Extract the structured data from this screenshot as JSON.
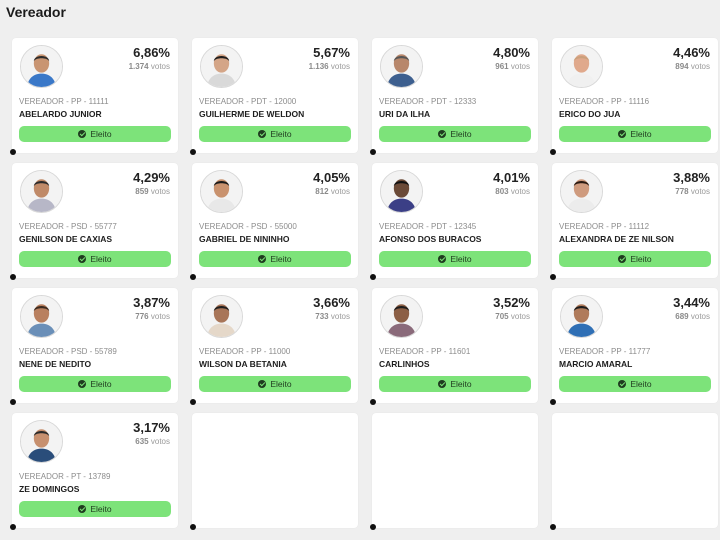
{
  "page": {
    "title": "Vereador"
  },
  "colors": {
    "elected_badge": "#7de37a",
    "page_bg": "#efefef",
    "card_bg": "#ffffff"
  },
  "candidates": [
    {
      "pct": "6,86%",
      "votes_num": "1.374",
      "votes_label": "votos",
      "meta": "VEREADOR - PP - 11111",
      "name": "ABELARDO JUNIOR",
      "status": "Eleito"
    },
    {
      "pct": "5,67%",
      "votes_num": "1.136",
      "votes_label": "votos",
      "meta": "VEREADOR - PDT - 12000",
      "name": "GUILHERME DE WELDON",
      "status": "Eleito"
    },
    {
      "pct": "4,80%",
      "votes_num": "961",
      "votes_label": "votos",
      "meta": "VEREADOR - PDT - 12333",
      "name": "URI DA ILHA",
      "status": "Eleito"
    },
    {
      "pct": "4,46%",
      "votes_num": "894",
      "votes_label": "votos",
      "meta": "VEREADOR - PP - 11116",
      "name": "ERICO DO JUA",
      "status": "Eleito"
    },
    {
      "pct": "4,29%",
      "votes_num": "859",
      "votes_label": "votos",
      "meta": "VEREADOR - PSD - 55777",
      "name": "GENILSON DE CAXIAS",
      "status": "Eleito"
    },
    {
      "pct": "4,05%",
      "votes_num": "812",
      "votes_label": "votos",
      "meta": "VEREADOR - PSD - 55000",
      "name": "GABRIEL DE NININHO",
      "status": "Eleito"
    },
    {
      "pct": "4,01%",
      "votes_num": "803",
      "votes_label": "votos",
      "meta": "VEREADOR - PDT - 12345",
      "name": "AFONSO DOS BURACOS",
      "status": "Eleito"
    },
    {
      "pct": "3,88%",
      "votes_num": "778",
      "votes_label": "votos",
      "meta": "VEREADOR - PP - 11112",
      "name": "ALEXANDRA DE ZE NILSON",
      "status": "Eleito"
    },
    {
      "pct": "3,87%",
      "votes_num": "776",
      "votes_label": "votos",
      "meta": "VEREADOR - PSD - 55789",
      "name": "NENE DE NEDITO",
      "status": "Eleito"
    },
    {
      "pct": "3,66%",
      "votes_num": "733",
      "votes_label": "votos",
      "meta": "VEREADOR - PP - 11000",
      "name": "WILSON DA BETANIA",
      "status": "Eleito"
    },
    {
      "pct": "3,52%",
      "votes_num": "705",
      "votes_label": "votos",
      "meta": "VEREADOR - PP - 11601",
      "name": "CARLINHOS",
      "status": "Eleito"
    },
    {
      "pct": "3,44%",
      "votes_num": "689",
      "votes_label": "votos",
      "meta": "VEREADOR - PP - 11777",
      "name": "MARCIO AMARAL",
      "status": "Eleito"
    },
    {
      "pct": "3,17%",
      "votes_num": "635",
      "votes_label": "votos",
      "meta": "VEREADOR - PT - 13789",
      "name": "ZE DOMINGOS",
      "status": "Eleito"
    }
  ],
  "avatar_styles": [
    {
      "shirt": "#3a78c8",
      "hair": "#2b2b2b",
      "skin": "#c99572"
    },
    {
      "shirt": "#d9d9d9",
      "hair": "#1e1e1e",
      "skin": "#d4a587"
    },
    {
      "shirt": "#3d5f8f",
      "hair": "#555555",
      "skin": "#b8876b"
    },
    {
      "shirt": "#f0f0f0",
      "hair": "#caa07c",
      "skin": "#e0a98c"
    },
    {
      "shirt": "#b7b7c7",
      "hair": "#2b2b2b",
      "skin": "#c08a68"
    },
    {
      "shirt": "#e8e8e8",
      "hair": "#1a1a1a",
      "skin": "#c9926e"
    },
    {
      "shirt": "#3b3f86",
      "hair": "#111111",
      "skin": "#6b4a37"
    },
    {
      "shirt": "#ececec",
      "hair": "#2a1a12",
      "skin": "#cf9b7e"
    },
    {
      "shirt": "#6a8fb8",
      "hair": "#3a2a20",
      "skin": "#b9805f"
    },
    {
      "shirt": "#e5d8c9",
      "hair": "#1e1e1e",
      "skin": "#a87558"
    },
    {
      "shirt": "#8a6a7a",
      "hair": "#1c1c1c",
      "skin": "#8c5f45"
    },
    {
      "shirt": "#2f6fb5",
      "hair": "#1c1c1c",
      "skin": "#b07b5b"
    },
    {
      "shirt": "#2a4d7a",
      "hair": "#2a2a2a",
      "skin": "#c7906f"
    }
  ],
  "empty_cards": 3
}
